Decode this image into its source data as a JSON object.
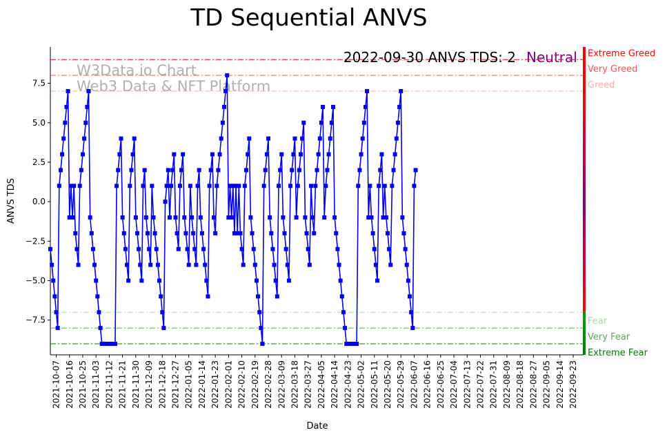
{
  "chart_data": {
    "type": "line",
    "title": "TD Sequential ANVS",
    "xlabel": "Date",
    "ylabel": "ANVS TDS",
    "ylim": [
      -9.7,
      9.8
    ],
    "yticks": [
      -7.5,
      -5.0,
      -2.5,
      0.0,
      2.5,
      5.0,
      7.5
    ],
    "ytick_labels": [
      "−7.5",
      "−5.0",
      "−2.5",
      "0.0",
      "2.5",
      "5.0",
      "7.5"
    ],
    "x_start": "2021-10-03",
    "x_end": "2022-09-30",
    "x_tick_labels": [
      "2021-10-07",
      "2021-10-16",
      "2021-10-25",
      "2021-11-03",
      "2021-11-12",
      "2021-11-21",
      "2021-11-30",
      "2021-12-09",
      "2021-12-18",
      "2021-12-27",
      "2022-01-05",
      "2022-01-14",
      "2022-01-23",
      "2022-02-01",
      "2022-02-10",
      "2022-02-19",
      "2022-02-28",
      "2022-03-09",
      "2022-03-18",
      "2022-03-27",
      "2022-04-05",
      "2022-04-14",
      "2022-04-23",
      "2022-05-02",
      "2022-05-11",
      "2022-05-20",
      "2022-05-29",
      "2022-06-07",
      "2022-06-16",
      "2022-06-25",
      "2022-07-04",
      "2022-07-13",
      "2022-07-22",
      "2022-07-31",
      "2022-08-09",
      "2022-08-18",
      "2022-08-27",
      "2022-09-05",
      "2022-09-14",
      "2022-09-23"
    ],
    "grid": false,
    "series": [
      {
        "color": "#0000ee",
        "marker": "square",
        "values": [
          -3,
          -4,
          -5,
          -6,
          -7,
          -8,
          1,
          2,
          3,
          4,
          5,
          6,
          7,
          -1,
          1,
          -1,
          1,
          -2,
          -3,
          -4,
          1,
          2,
          3,
          4,
          5,
          6,
          7,
          -1,
          -2,
          -3,
          -4,
          -5,
          -6,
          -7,
          -8,
          -9,
          -9,
          -9,
          -9,
          -9,
          -9,
          -9,
          -9,
          -9,
          -9,
          1,
          2,
          3,
          4,
          -1,
          -2,
          -3,
          -4,
          -5,
          1,
          2,
          3,
          4,
          -1,
          -2,
          -3,
          -4,
          -5,
          1,
          2,
          -1,
          -2,
          -3,
          -4,
          1,
          -1,
          -2,
          -3,
          -4,
          -5,
          -6,
          -7,
          -8,
          0,
          1,
          2,
          -1,
          1,
          2,
          3,
          -1,
          -2,
          -3,
          1,
          2,
          3,
          -1,
          -2,
          -3,
          -4,
          1,
          -1,
          -2,
          -3,
          -4,
          1,
          2,
          -1,
          -2,
          -3,
          -4,
          -5,
          -6,
          1,
          2,
          3,
          -1,
          -2,
          1,
          2,
          3,
          4,
          5,
          6,
          7,
          8,
          -1,
          1,
          -1,
          1,
          -2,
          1,
          -2,
          1,
          -2,
          -3,
          -4,
          1,
          2,
          3,
          4,
          -1,
          -2,
          -3,
          -4,
          -5,
          -6,
          -7,
          -8,
          -9,
          1,
          2,
          3,
          4,
          -1,
          -2,
          -3,
          -4,
          -5,
          -6,
          1,
          2,
          3,
          -1,
          -2,
          -3,
          -4,
          -5,
          1,
          2,
          3,
          4,
          -1,
          1,
          2,
          3,
          4,
          5,
          -1,
          -2,
          -3,
          -4,
          1,
          -1,
          -2,
          1,
          2,
          3,
          4,
          5,
          6,
          -1,
          1,
          2,
          3,
          4,
          5,
          6,
          -1,
          -2,
          -3,
          -4,
          -5,
          -6,
          -7,
          -8,
          -9,
          -9,
          -9,
          -9,
          -9,
          -9,
          -9,
          -9,
          1,
          2,
          3,
          4,
          5,
          6,
          7,
          -1,
          1,
          -1,
          -2,
          -3,
          -4,
          -5,
          1,
          2,
          3,
          -1,
          1,
          -1,
          -2,
          -3,
          -4,
          1,
          2,
          3,
          4,
          5,
          6,
          7,
          -1,
          -2,
          -3,
          -4,
          -5,
          -6,
          -7,
          -8,
          1,
          2
        ]
      }
    ],
    "levels": [
      {
        "label": "Extreme Greed",
        "y": 9,
        "color": "#ff0000"
      },
      {
        "label": "Very Greed",
        "y": 8,
        "color": "#ff5555"
      },
      {
        "label": "Greed",
        "y": 7,
        "color": "#ffaaaa"
      },
      {
        "label": "Fear",
        "y": -7,
        "color": "#aad4aa"
      },
      {
        "label": "Very Fear",
        "y": -8,
        "color": "#55aa55"
      },
      {
        "label": "Extreme Fear",
        "y": -9,
        "color": "#008000"
      }
    ],
    "annotations": {
      "status_text": "2022-09-30 ANVS TDS: 2",
      "status_word": "Neutral",
      "status_word_color": "#800080",
      "watermark_line1": "W3Data.io Chart",
      "watermark_line2": "Web3 Data & NFT Platform",
      "watermark_color": "#b0b0b0"
    }
  }
}
